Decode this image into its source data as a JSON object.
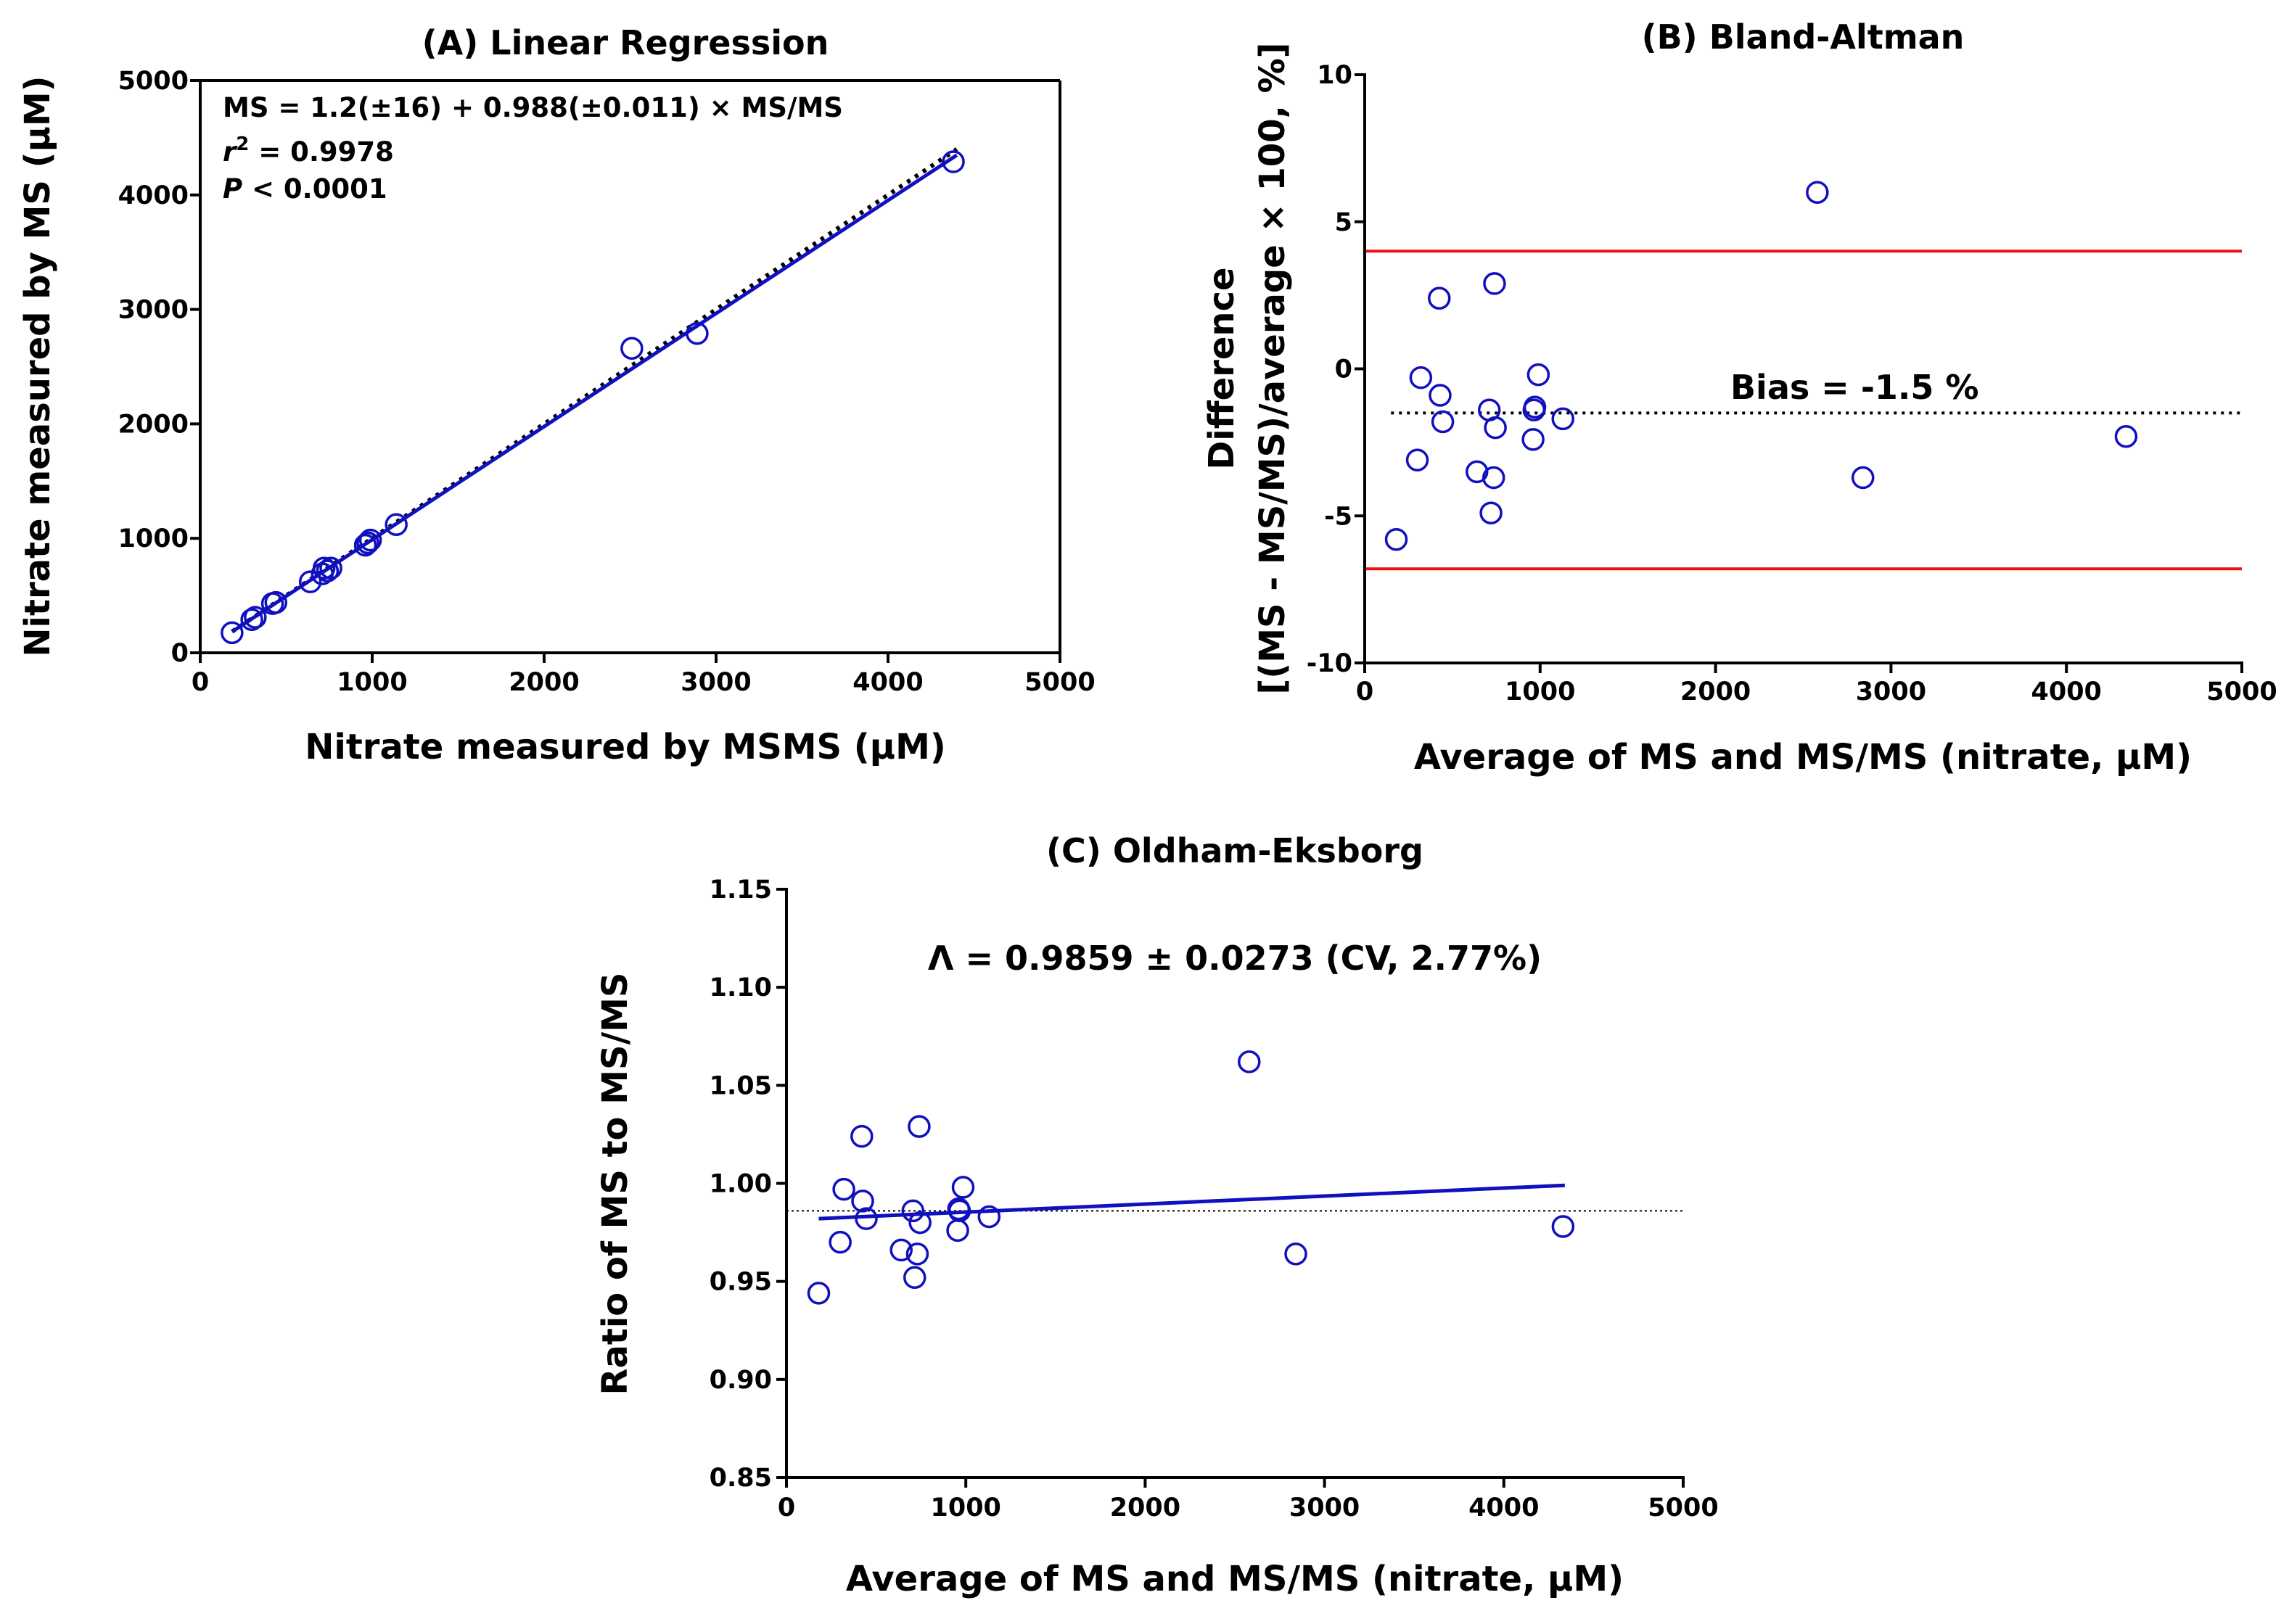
{
  "colors": {
    "point": "#1010c0",
    "fit": "#1010c0",
    "limits": "#ee1111",
    "axis": "#000000",
    "background": "#ffffff"
  },
  "chart_data": [
    {
      "id": "A",
      "type": "scatter",
      "title": "(A) Linear Regression",
      "xlabel": "Nitrate measured by MSMS (µM)",
      "ylabel": "Nitrate measured by MS (µM)",
      "xlim": [
        0,
        5000
      ],
      "ylim": [
        0,
        5000
      ],
      "xticks": [
        0,
        1000,
        2000,
        3000,
        4000,
        5000
      ],
      "yticks": [
        0,
        1000,
        2000,
        3000,
        4000,
        5000
      ],
      "xtick_labels": [
        "0",
        "1000",
        "2000",
        "3000",
        "4000",
        "5000"
      ],
      "ytick_labels": [
        "0",
        "1000",
        "2000",
        "3000",
        "4000",
        "5000"
      ],
      "grid": false,
      "annotations": {
        "equation": "MS = 1.2(±16) + 0.988(±0.011) × MS/MS",
        "r2_symbol": "r",
        "r2_sup": "2",
        "r2_value": " = 0.9978",
        "p_symbol": "P",
        "p_value": " < 0.0001"
      },
      "points": [
        {
          "x": 185,
          "y": 175
        },
        {
          "x": 300,
          "y": 290
        },
        {
          "x": 320,
          "y": 310
        },
        {
          "x": 420,
          "y": 430
        },
        {
          "x": 440,
          "y": 440
        },
        {
          "x": 640,
          "y": 620
        },
        {
          "x": 710,
          "y": 690
        },
        {
          "x": 720,
          "y": 740
        },
        {
          "x": 740,
          "y": 715
        },
        {
          "x": 760,
          "y": 740
        },
        {
          "x": 960,
          "y": 940
        },
        {
          "x": 975,
          "y": 960
        },
        {
          "x": 990,
          "y": 985
        },
        {
          "x": 1140,
          "y": 1120
        },
        {
          "x": 2510,
          "y": 2660
        },
        {
          "x": 2890,
          "y": 2790
        },
        {
          "x": 4380,
          "y": 4290
        }
      ],
      "fit_line": {
        "x": [
          185,
          4400
        ],
        "y": [
          184,
          4348
        ]
      },
      "identity_line": {
        "x": [
          185,
          4400
        ],
        "y": [
          185,
          4400
        ]
      }
    },
    {
      "id": "B",
      "type": "scatter",
      "title": "(B) Bland-Altman",
      "xlabel": "Average of MS and MS/MS (nitrate, µM)",
      "ylabel_line1": "Difference",
      "ylabel_line2": "[(MS - MS/MS)/average × 100, %]",
      "xlim": [
        0,
        5000
      ],
      "ylim": [
        -10,
        10
      ],
      "xticks": [
        0,
        1000,
        2000,
        3000,
        4000,
        5000
      ],
      "yticks": [
        -10,
        -5,
        0,
        5,
        10
      ],
      "xtick_labels": [
        "0",
        "1000",
        "2000",
        "3000",
        "4000",
        "5000"
      ],
      "ytick_labels": [
        "-10",
        "-5",
        "0",
        "5",
        "10"
      ],
      "grid": false,
      "annotations": {
        "bias_label": "Bias = -1.5 %"
      },
      "bias": -1.5,
      "upper_limit": 4.0,
      "lower_limit": -6.8,
      "points": [
        {
          "x": 180,
          "y": -5.8
        },
        {
          "x": 300,
          "y": -3.1
        },
        {
          "x": 320,
          "y": -0.3
        },
        {
          "x": 425,
          "y": 2.4
        },
        {
          "x": 430,
          "y": -0.9
        },
        {
          "x": 445,
          "y": -1.8
        },
        {
          "x": 640,
          "y": -3.5
        },
        {
          "x": 710,
          "y": -1.4
        },
        {
          "x": 720,
          "y": -4.9
        },
        {
          "x": 735,
          "y": -3.7
        },
        {
          "x": 740,
          "y": 2.9
        },
        {
          "x": 745,
          "y": -2.0
        },
        {
          "x": 960,
          "y": -2.4
        },
        {
          "x": 965,
          "y": -1.4
        },
        {
          "x": 970,
          "y": -1.3
        },
        {
          "x": 990,
          "y": -0.2
        },
        {
          "x": 1130,
          "y": -1.7
        },
        {
          "x": 2580,
          "y": 6.0
        },
        {
          "x": 2840,
          "y": -3.7
        },
        {
          "x": 4340,
          "y": -2.3
        }
      ]
    },
    {
      "id": "C",
      "type": "scatter",
      "title": "(C) Oldham-Eksborg",
      "xlabel": "Average of MS and MS/MS (nitrate, µM)",
      "ylabel": "Ratio of MS to MS/MS",
      "xlim": [
        0,
        5000
      ],
      "ylim": [
        0.85,
        1.15
      ],
      "xticks": [
        0,
        1000,
        2000,
        3000,
        4000,
        5000
      ],
      "yticks": [
        0.85,
        0.9,
        0.95,
        1.0,
        1.05,
        1.1,
        1.15
      ],
      "xtick_labels": [
        "0",
        "1000",
        "2000",
        "3000",
        "4000",
        "5000"
      ],
      "ytick_labels": [
        "0.85",
        "0.90",
        "0.95",
        "1.00",
        "1.05",
        "1.10",
        "1.15"
      ],
      "grid": false,
      "annotations": {
        "lambda_label": "Λ = 0.9859 ± 0.0273 (CV, 2.77%)"
      },
      "reference_y": 0.986,
      "fit_line": {
        "x": [
          180,
          4340
        ],
        "y": [
          0.982,
          0.999
        ]
      },
      "points": [
        {
          "x": 180,
          "y": 0.944
        },
        {
          "x": 300,
          "y": 0.97
        },
        {
          "x": 320,
          "y": 0.997
        },
        {
          "x": 420,
          "y": 1.024
        },
        {
          "x": 425,
          "y": 0.991
        },
        {
          "x": 445,
          "y": 0.982
        },
        {
          "x": 640,
          "y": 0.966
        },
        {
          "x": 705,
          "y": 0.986
        },
        {
          "x": 715,
          "y": 0.952
        },
        {
          "x": 730,
          "y": 0.964
        },
        {
          "x": 740,
          "y": 1.029
        },
        {
          "x": 745,
          "y": 0.98
        },
        {
          "x": 955,
          "y": 0.976
        },
        {
          "x": 960,
          "y": 0.987
        },
        {
          "x": 965,
          "y": 0.986
        },
        {
          "x": 985,
          "y": 0.998
        },
        {
          "x": 1130,
          "y": 0.983
        },
        {
          "x": 2580,
          "y": 1.062
        },
        {
          "x": 2840,
          "y": 0.964
        },
        {
          "x": 4330,
          "y": 0.978
        }
      ]
    }
  ]
}
